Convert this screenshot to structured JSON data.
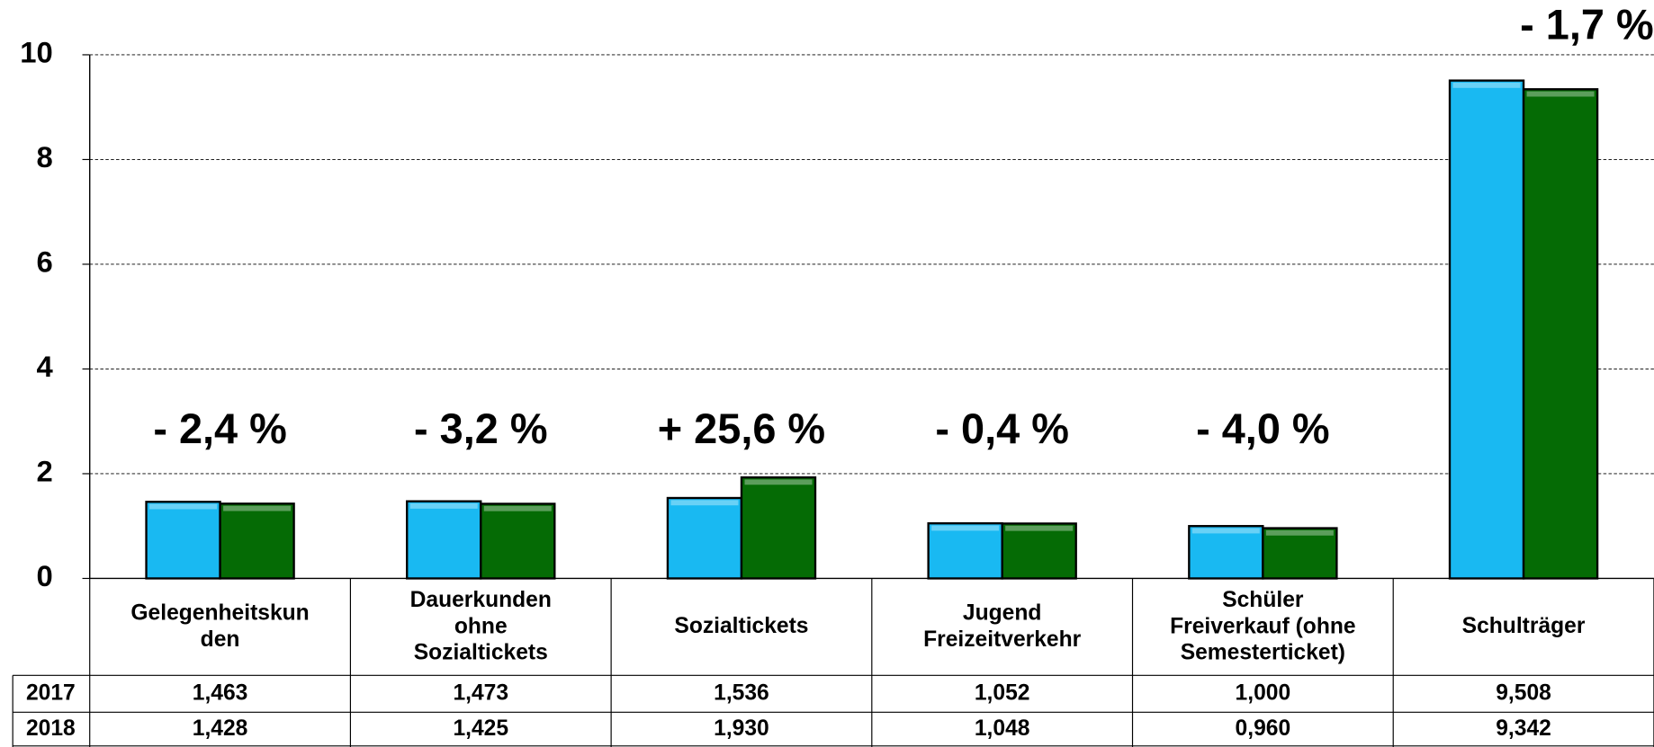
{
  "chart_data": {
    "type": "bar",
    "categories": [
      "Gelegenheitskun\nden",
      "Dauerkunden\nohne\nSozialtickets",
      "Sozialtickets",
      "Jugend\nFreizeitverkehr",
      "Schüler\nFreiverkauf (ohne\nSemesterticket)",
      "Schulträger"
    ],
    "series": [
      {
        "name": "2017",
        "color": "#19b9f2",
        "values": [
          1.463,
          1.473,
          1.536,
          1.052,
          1.0,
          9.508
        ],
        "value_labels": [
          "1,463",
          "1,473",
          "1,536",
          "1,052",
          "1,000",
          "9,508"
        ]
      },
      {
        "name": "2018",
        "color": "#056b05",
        "values": [
          1.428,
          1.425,
          1.93,
          1.048,
          0.96,
          9.342
        ],
        "value_labels": [
          "1,428",
          "1,425",
          "1,930",
          "1,048",
          "0,960",
          "9,342"
        ]
      }
    ],
    "annotations": [
      "- 2,4 %",
      "- 3,2 %",
      "+ 25,6 %",
      "- 0,4 %",
      "- 4,0 %",
      "- 1,7 %"
    ],
    "ylim": [
      0,
      10
    ],
    "yticks": [
      0,
      2,
      4,
      6,
      8,
      10
    ],
    "grid": true
  }
}
